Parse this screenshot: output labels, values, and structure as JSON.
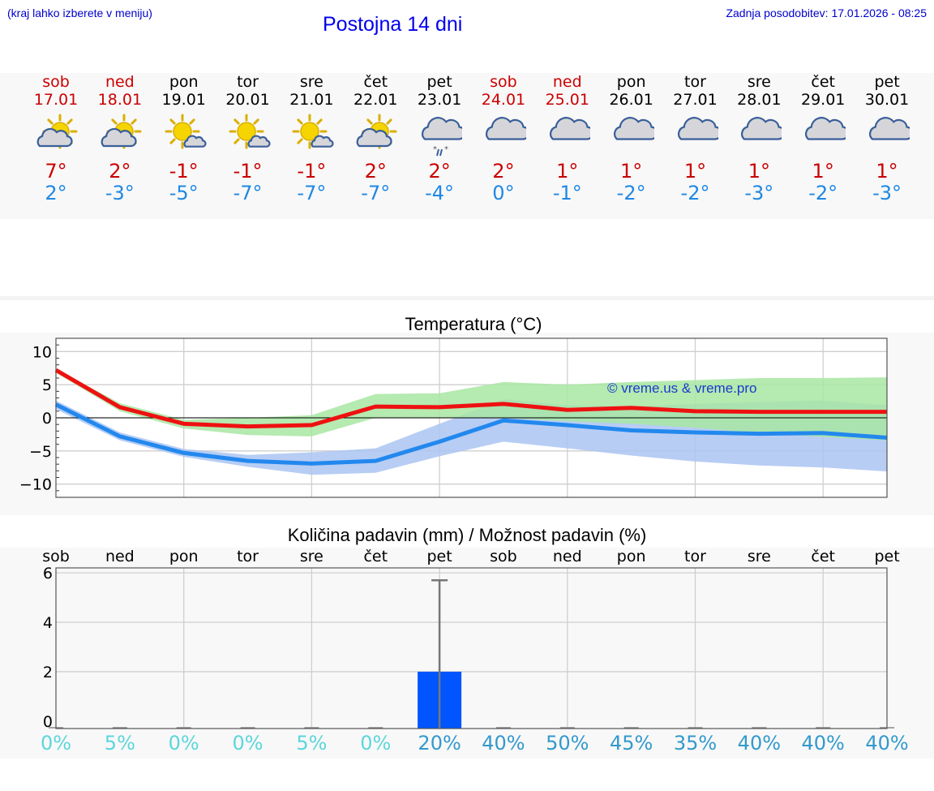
{
  "header": {
    "left_note": "(kraj lahko izberete v meniju)",
    "title": "Postojna 14 dni",
    "right_note": "Zadnja posodobitev: 17.01.2026 - 08:25"
  },
  "colors": {
    "weekend": "#cc0000",
    "max_temp": "#cc0000",
    "min_temp": "#1e88e5",
    "max_line": "#ee1111",
    "min_line": "#2288ee",
    "max_band": "#a8e6a2",
    "min_band": "#aac4f2",
    "overlap_band": "#7cc4a4",
    "precip_bar": "#0055ff",
    "pct_light": "#5cd6dc",
    "pct_dark": "#3399cc"
  },
  "days": [
    {
      "name": "sob",
      "date": "17.01",
      "weekend": true,
      "icon": "sun-cloud-icon",
      "tmax": "7°",
      "tmin": "2°"
    },
    {
      "name": "ned",
      "date": "18.01",
      "weekend": true,
      "icon": "sun-cloud-icon",
      "tmax": "2°",
      "tmin": "-3°"
    },
    {
      "name": "pon",
      "date": "19.01",
      "weekend": false,
      "icon": "sun-small-cloud-icon",
      "tmax": "-1°",
      "tmin": "-5°"
    },
    {
      "name": "tor",
      "date": "20.01",
      "weekend": false,
      "icon": "sun-small-cloud-icon",
      "tmax": "-1°",
      "tmin": "-7°"
    },
    {
      "name": "sre",
      "date": "21.01",
      "weekend": false,
      "icon": "sun-small-cloud-icon",
      "tmax": "-1°",
      "tmin": "-7°"
    },
    {
      "name": "čet",
      "date": "22.01",
      "weekend": false,
      "icon": "sun-cloud-icon",
      "tmax": "2°",
      "tmin": "-7°"
    },
    {
      "name": "pet",
      "date": "23.01",
      "weekend": false,
      "icon": "cloud-sleet-icon",
      "tmax": "2°",
      "tmin": "-4°"
    },
    {
      "name": "sob",
      "date": "24.01",
      "weekend": true,
      "icon": "cloud-icon",
      "tmax": "2°",
      "tmin": "0°"
    },
    {
      "name": "ned",
      "date": "25.01",
      "weekend": true,
      "icon": "cloud-icon",
      "tmax": "1°",
      "tmin": "-1°"
    },
    {
      "name": "pon",
      "date": "26.01",
      "weekend": false,
      "icon": "cloud-icon",
      "tmax": "1°",
      "tmin": "-2°"
    },
    {
      "name": "tor",
      "date": "27.01",
      "weekend": false,
      "icon": "cloud-icon",
      "tmax": "1°",
      "tmin": "-2°"
    },
    {
      "name": "sre",
      "date": "28.01",
      "weekend": false,
      "icon": "cloud-icon",
      "tmax": "1°",
      "tmin": "-3°"
    },
    {
      "name": "čet",
      "date": "29.01",
      "weekend": false,
      "icon": "cloud-icon",
      "tmax": "1°",
      "tmin": "-2°"
    },
    {
      "name": "pet",
      "date": "30.01",
      "weekend": false,
      "icon": "cloud-icon",
      "tmax": "1°",
      "tmin": "-3°"
    }
  ],
  "chart_data": [
    {
      "type": "line",
      "title": "Temperatura (°C)",
      "ylim": [
        -12,
        12
      ],
      "yticks": [
        10,
        5,
        0,
        -5,
        -10
      ],
      "x": [
        0,
        1,
        2,
        3,
        4,
        5,
        6,
        7,
        8,
        9,
        10,
        11,
        12,
        13
      ],
      "watermark": "© vreme.us & vreme.pro",
      "series": [
        {
          "name": "max",
          "values": [
            7.2,
            1.6,
            -0.9,
            -1.3,
            -1.1,
            1.7,
            1.6,
            2.1,
            1.2,
            1.5,
            1.0,
            0.9,
            0.9,
            0.9
          ],
          "band_low": [
            6.8,
            1.0,
            -1.6,
            -2.6,
            -2.8,
            0.0,
            0.0,
            0.0,
            -0.5,
            -0.9,
            -1.5,
            -2.3,
            -2.9,
            -3.4
          ],
          "band_high": [
            7.4,
            2.2,
            -0.3,
            0.0,
            0.4,
            3.6,
            3.7,
            5.4,
            5.0,
            5.4,
            5.7,
            6.0,
            6.0,
            6.1
          ]
        },
        {
          "name": "min",
          "values": [
            2.0,
            -2.8,
            -5.3,
            -6.5,
            -6.9,
            -6.5,
            -3.6,
            -0.4,
            -1.1,
            -1.9,
            -2.2,
            -2.4,
            -2.3,
            -3.0
          ],
          "band_low": [
            1.3,
            -3.4,
            -5.9,
            -7.4,
            -8.6,
            -8.3,
            -5.8,
            -3.6,
            -4.6,
            -5.7,
            -6.6,
            -7.2,
            -7.5,
            -8.1
          ],
          "band_high": [
            2.6,
            -2.2,
            -4.7,
            -5.6,
            -5.2,
            -4.6,
            -0.9,
            2.8,
            1.9,
            1.7,
            2.1,
            2.4,
            2.6,
            1.9
          ]
        }
      ]
    },
    {
      "type": "bar",
      "title": "Količina padavin (mm) / Možnost padavin (%)",
      "ylim": [
        -0.3,
        6.2
      ],
      "yticks": [
        6,
        4,
        2,
        0
      ],
      "categories": [
        "sob",
        "ned",
        "pon",
        "tor",
        "sre",
        "čet",
        "pet",
        "sob",
        "ned",
        "pon",
        "tor",
        "sre",
        "čet",
        "pet"
      ],
      "values": [
        0,
        0,
        0,
        0,
        0,
        0,
        2.0,
        0,
        0,
        0,
        0,
        0,
        0,
        0
      ],
      "error_max": [
        null,
        null,
        null,
        null,
        null,
        null,
        5.7,
        null,
        null,
        null,
        null,
        null,
        null,
        null
      ],
      "chance": [
        "0%",
        "5%",
        "0%",
        "0%",
        "5%",
        "0%",
        "20%",
        "40%",
        "50%",
        "45%",
        "35%",
        "40%",
        "40%",
        "40%"
      ]
    }
  ]
}
